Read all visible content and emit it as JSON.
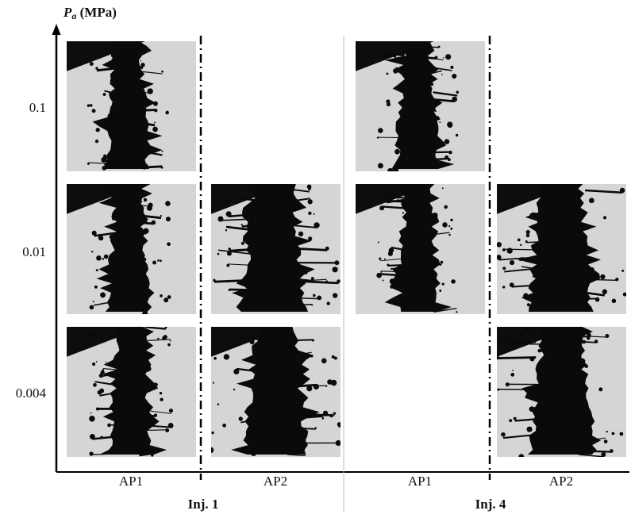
{
  "y_axis": {
    "label_symbol": "P",
    "label_subscript": "a",
    "label_unit": "(MPa)",
    "ticks": [
      "0.1",
      "0.01",
      "0.004"
    ]
  },
  "columns": [
    "AP1",
    "AP2",
    "AP1",
    "AP2"
  ],
  "groups": [
    "Inj. 1",
    "Inj. 4"
  ],
  "photos": [
    {
      "group": "Inj. 1",
      "column": "AP1",
      "pa": "0.1"
    },
    {
      "group": "Inj. 1",
      "column": "AP1",
      "pa": "0.01"
    },
    {
      "group": "Inj. 1",
      "column": "AP1",
      "pa": "0.004"
    },
    {
      "group": "Inj. 1",
      "column": "AP2",
      "pa": "0.01"
    },
    {
      "group": "Inj. 1",
      "column": "AP2",
      "pa": "0.004"
    },
    {
      "group": "Inj. 4",
      "column": "AP1",
      "pa": "0.1"
    },
    {
      "group": "Inj. 4",
      "column": "AP1",
      "pa": "0.01"
    },
    {
      "group": "Inj. 4",
      "column": "AP2",
      "pa": "0.01"
    },
    {
      "group": "Inj. 4",
      "column": "AP2",
      "pa": "0.004"
    }
  ]
}
